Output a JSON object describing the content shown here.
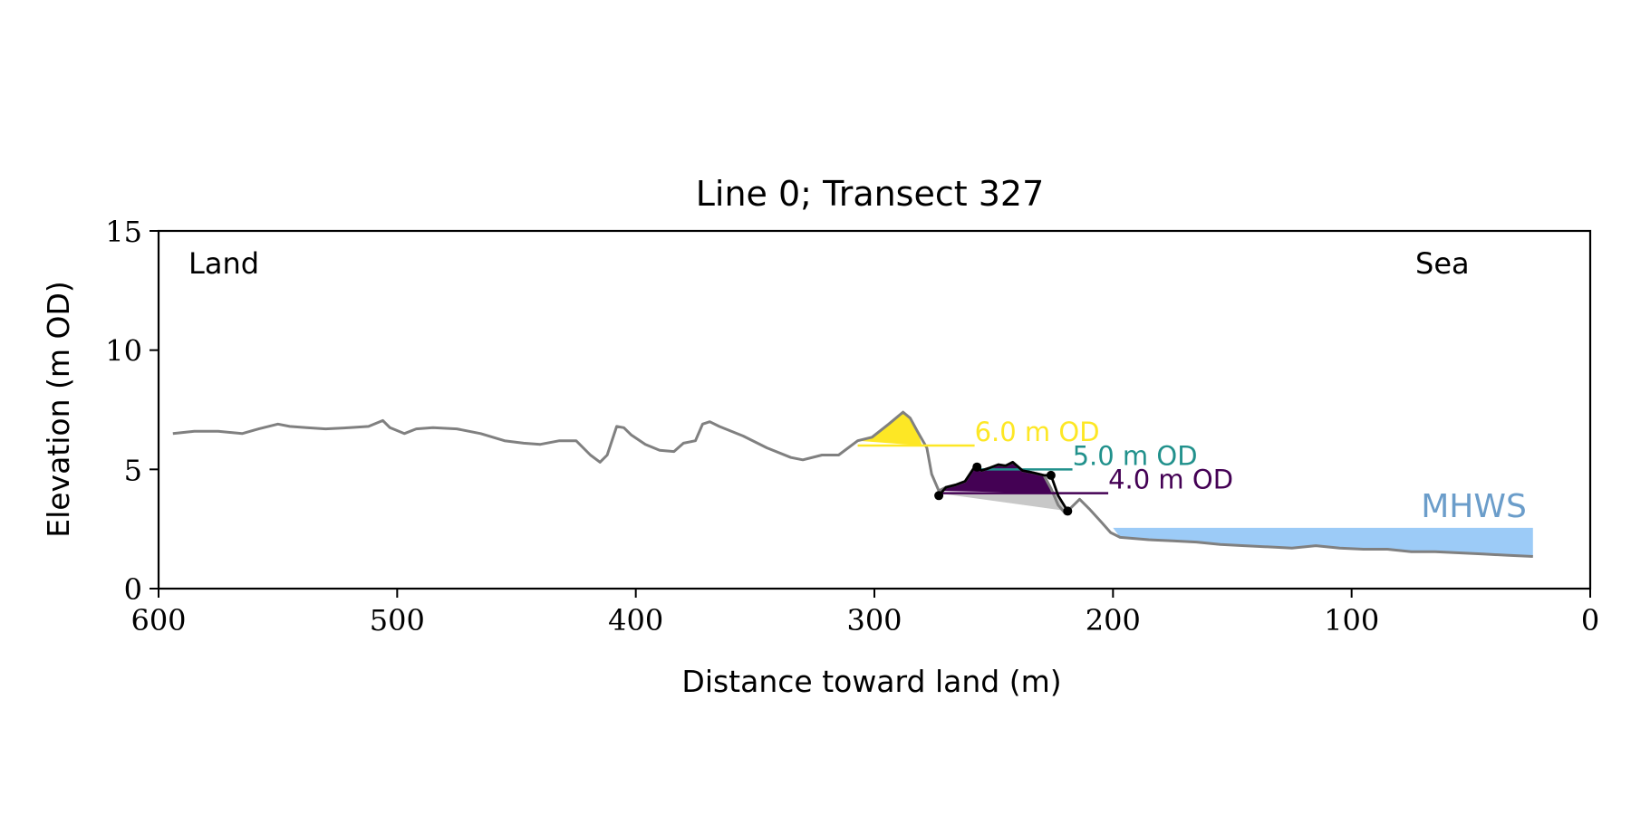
{
  "chart_data": {
    "type": "line",
    "title": "Line 0; Transect 327",
    "xlabel": "Distance toward land (m)",
    "ylabel": "Elevation (m OD)",
    "xlim": [
      600,
      0
    ],
    "ylim": [
      0,
      15
    ],
    "x_ticks": [
      600,
      500,
      400,
      300,
      200,
      100,
      0
    ],
    "y_ticks": [
      0,
      5,
      10,
      15
    ],
    "grid": false,
    "annotations": {
      "land": "Land",
      "sea": "Sea"
    },
    "profile": {
      "color": "#808080",
      "x": [
        594,
        585,
        575,
        565,
        558,
        550,
        545,
        538,
        530,
        520,
        512,
        506,
        503,
        497,
        492,
        485,
        475,
        465,
        455,
        447,
        440,
        432,
        425,
        419,
        415,
        412,
        408,
        405,
        402,
        396,
        390,
        384,
        380,
        375,
        372,
        369,
        365,
        355,
        345,
        335,
        330,
        322,
        315,
        307,
        301,
        294,
        288,
        285,
        282,
        278,
        276,
        273,
        270,
        266,
        262,
        258,
        255,
        252,
        248,
        245,
        242,
        238,
        233,
        229,
        226,
        223,
        220,
        217,
        214,
        210,
        205,
        201,
        197,
        185,
        175,
        165,
        155,
        145,
        135,
        125,
        115,
        105,
        95,
        85,
        75,
        65,
        55,
        45,
        35,
        24
      ],
      "y": [
        6.5,
        6.6,
        6.6,
        6.5,
        6.7,
        6.9,
        6.8,
        6.75,
        6.7,
        6.75,
        6.8,
        7.05,
        6.75,
        6.5,
        6.7,
        6.75,
        6.7,
        6.5,
        6.2,
        6.1,
        6.05,
        6.2,
        6.2,
        5.6,
        5.3,
        5.6,
        6.8,
        6.75,
        6.45,
        6.05,
        5.8,
        5.75,
        6.1,
        6.2,
        6.9,
        7.0,
        6.8,
        6.4,
        5.9,
        5.5,
        5.4,
        5.6,
        5.6,
        6.2,
        6.35,
        6.9,
        7.4,
        7.15,
        6.6,
        5.9,
        4.8,
        4.1,
        4.25,
        4.35,
        4.5,
        5.1,
        4.95,
        5.05,
        5.2,
        5.15,
        5.3,
        4.95,
        4.85,
        4.75,
        4.2,
        3.5,
        3.15,
        3.45,
        3.75,
        3.35,
        2.8,
        2.35,
        2.15,
        2.05,
        2.0,
        1.95,
        1.85,
        1.8,
        1.75,
        1.7,
        1.8,
        1.7,
        1.65,
        1.65,
        1.55,
        1.55,
        1.5,
        1.45,
        1.4,
        1.35
      ]
    },
    "fill_6m": {
      "color": "#fde725",
      "x": [
        307,
        301,
        294,
        288,
        285,
        282,
        280
      ],
      "y": [
        6.2,
        6.35,
        6.9,
        7.4,
        7.15,
        6.6,
        6.0
      ]
    },
    "fill_4m": {
      "color": "#440154",
      "x": [
        273,
        270,
        266,
        262,
        258,
        255,
        252,
        248,
        245,
        242,
        238,
        233,
        229,
        226,
        224
      ],
      "y": [
        4.1,
        4.25,
        4.35,
        4.5,
        5.1,
        4.95,
        5.05,
        5.2,
        5.15,
        5.3,
        4.95,
        4.85,
        4.75,
        4.2,
        4.0
      ]
    },
    "grey_wedge": {
      "color": "#c8c8c8",
      "x": [
        273,
        219,
        224
      ],
      "y": [
        4.0,
        3.25,
        4.0
      ]
    },
    "black_segment": {
      "color": "#000000",
      "x": [
        273,
        270,
        266,
        262,
        258,
        255,
        252,
        248,
        245,
        242,
        238,
        233,
        229,
        226,
        223,
        219
      ],
      "y": [
        3.9,
        4.25,
        4.35,
        4.5,
        5.1,
        4.95,
        5.05,
        5.2,
        5.15,
        5.3,
        4.95,
        4.85,
        4.75,
        4.75,
        3.9,
        3.25
      ]
    },
    "black_points": {
      "color": "#000000",
      "x": [
        273,
        257,
        226,
        219
      ],
      "y": [
        3.9,
        5.1,
        4.75,
        3.25
      ]
    },
    "reference_levels": [
      {
        "label": "6.0 m OD",
        "color": "#fde725",
        "y": 6.0,
        "x_start": 307,
        "x_end": 258
      },
      {
        "label": "5.0 m OD",
        "color": "#21918c",
        "y": 5.0,
        "x_start": 256,
        "x_end": 217
      },
      {
        "label": "4.0 m OD",
        "color": "#440154",
        "y": 4.0,
        "x_start": 273,
        "x_end": 202
      }
    ],
    "mhws": {
      "label": "MHWS",
      "fill_color": "#9ccbf7",
      "label_color": "#6b9dca",
      "y": 2.55,
      "x_start": 200,
      "x_end": 24
    }
  }
}
